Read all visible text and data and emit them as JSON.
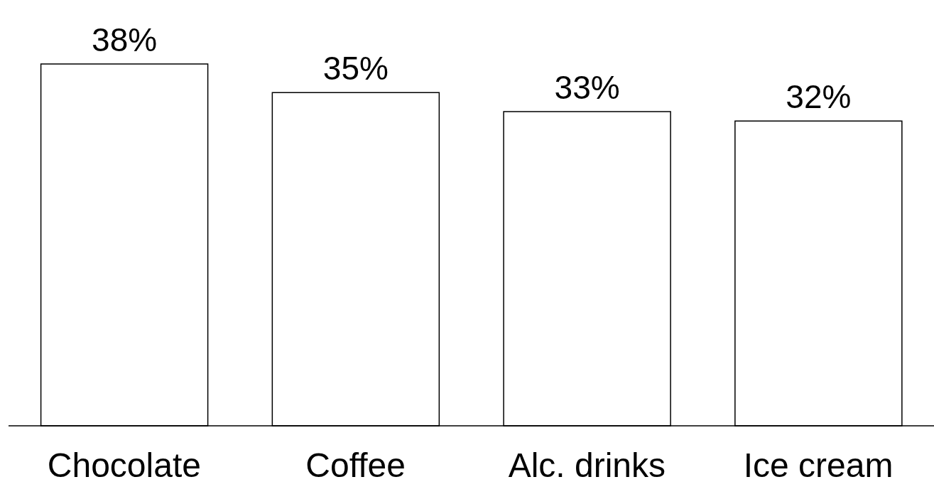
{
  "chart_data": {
    "type": "bar",
    "categories": [
      "Chocolate",
      "Coffee",
      "Alc. drinks",
      "Ice cream"
    ],
    "values": [
      38,
      35,
      33,
      32
    ],
    "value_labels": [
      "38%",
      "35%",
      "33%",
      "32%"
    ],
    "color": "#ffffff"
  }
}
